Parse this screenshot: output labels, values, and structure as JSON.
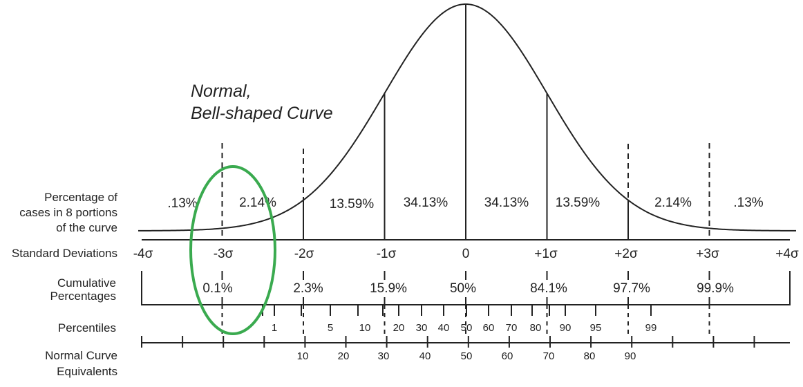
{
  "title": [
    "Normal,",
    "Bell-shaped Curve"
  ],
  "row_labels": {
    "percentage": [
      "Percentage of",
      "cases in 8 portions",
      "of the curve"
    ],
    "std_dev": "Standard Deviations",
    "cumulative": [
      "Cumulative",
      "Percentages"
    ],
    "percentiles": "Percentiles",
    "nce": [
      "Normal Curve",
      "Equivalents"
    ]
  },
  "portion_percentages": [
    ".13%",
    "2.14%",
    "13.59%",
    "34.13%",
    "34.13%",
    "13.59%",
    "2.14%",
    ".13%"
  ],
  "std_dev_labels": [
    "-4σ",
    "-3σ",
    "-2σ",
    "-1σ",
    "0",
    "+1σ",
    "+2σ",
    "+3σ",
    "+4σ"
  ],
  "cumulative_percentages": [
    "0.1%",
    "2.3%",
    "15.9%",
    "50%",
    "84.1%",
    "97.7%",
    "99.9%"
  ],
  "percentiles": [
    "1",
    "5",
    "10",
    "20",
    "30",
    "40",
    "50",
    "60",
    "70",
    "80",
    "90",
    "95",
    "99"
  ],
  "nce": [
    "10",
    "20",
    "30",
    "40",
    "50",
    "60",
    "70",
    "80",
    "90"
  ],
  "colors": {
    "line": "#222222",
    "highlight": "#3aaa4f"
  }
}
